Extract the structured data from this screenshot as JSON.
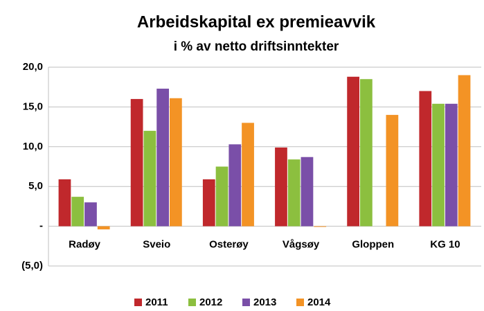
{
  "chart_data": {
    "type": "bar",
    "title": "Arbeidskapital  ex premieavvik",
    "subtitle": "i % av netto driftsinntekter",
    "categories": [
      "Radøy",
      "Sveio",
      "Osterøy",
      "Vågsøy",
      "Gloppen",
      "KG 10"
    ],
    "series": [
      {
        "name": "2011",
        "color": "#c0282c",
        "values": [
          5.9,
          16.0,
          5.9,
          9.9,
          18.8,
          17.0
        ]
      },
      {
        "name": "2012",
        "color": "#8cbf3f",
        "values": [
          3.7,
          12.0,
          7.5,
          8.4,
          18.5,
          15.4
        ]
      },
      {
        "name": "2013",
        "color": "#7a4fa8",
        "values": [
          3.0,
          17.3,
          10.3,
          8.7,
          null,
          15.4
        ]
      },
      {
        "name": "2014",
        "color": "#f39325",
        "values": [
          -0.4,
          16.1,
          13.0,
          0,
          14.0,
          19.0
        ]
      }
    ],
    "ylim": [
      -5,
      20
    ],
    "yticks": [
      {
        "value": -5,
        "label": "(5,0)"
      },
      {
        "value": 0,
        "label": "-"
      },
      {
        "value": 5,
        "label": "5,0"
      },
      {
        "value": 10,
        "label": "10,0"
      },
      {
        "value": 15,
        "label": "15,0"
      },
      {
        "value": 20,
        "label": "20,0"
      }
    ],
    "grid": true,
    "legend": "bottom"
  }
}
